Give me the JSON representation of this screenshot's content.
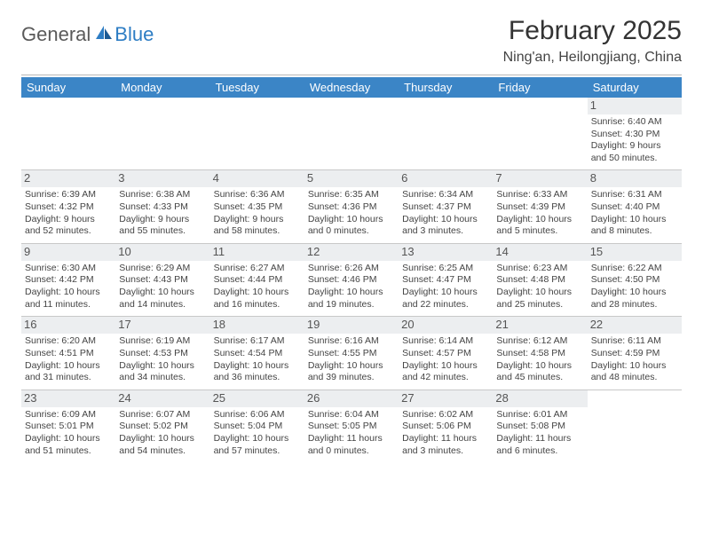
{
  "brand": {
    "part1": "General",
    "part2": "Blue"
  },
  "title": "February 2025",
  "location": "Ning'an, Heilongjiang, China",
  "colors": {
    "header_bg": "#3b85c6",
    "header_text": "#ffffff",
    "brand_gray": "#5a5a5a",
    "brand_blue": "#2d7dc4",
    "text": "#444444",
    "divider": "#c8c8c8",
    "daynum_bg": "#eceef0"
  },
  "weekdays": [
    "Sunday",
    "Monday",
    "Tuesday",
    "Wednesday",
    "Thursday",
    "Friday",
    "Saturday"
  ],
  "weeks": [
    [
      null,
      null,
      null,
      null,
      null,
      null,
      {
        "n": "1",
        "sr": "Sunrise: 6:40 AM",
        "ss": "Sunset: 4:30 PM",
        "d1": "Daylight: 9 hours",
        "d2": "and 50 minutes."
      }
    ],
    [
      {
        "n": "2",
        "sr": "Sunrise: 6:39 AM",
        "ss": "Sunset: 4:32 PM",
        "d1": "Daylight: 9 hours",
        "d2": "and 52 minutes."
      },
      {
        "n": "3",
        "sr": "Sunrise: 6:38 AM",
        "ss": "Sunset: 4:33 PM",
        "d1": "Daylight: 9 hours",
        "d2": "and 55 minutes."
      },
      {
        "n": "4",
        "sr": "Sunrise: 6:36 AM",
        "ss": "Sunset: 4:35 PM",
        "d1": "Daylight: 9 hours",
        "d2": "and 58 minutes."
      },
      {
        "n": "5",
        "sr": "Sunrise: 6:35 AM",
        "ss": "Sunset: 4:36 PM",
        "d1": "Daylight: 10 hours",
        "d2": "and 0 minutes."
      },
      {
        "n": "6",
        "sr": "Sunrise: 6:34 AM",
        "ss": "Sunset: 4:37 PM",
        "d1": "Daylight: 10 hours",
        "d2": "and 3 minutes."
      },
      {
        "n": "7",
        "sr": "Sunrise: 6:33 AM",
        "ss": "Sunset: 4:39 PM",
        "d1": "Daylight: 10 hours",
        "d2": "and 5 minutes."
      },
      {
        "n": "8",
        "sr": "Sunrise: 6:31 AM",
        "ss": "Sunset: 4:40 PM",
        "d1": "Daylight: 10 hours",
        "d2": "and 8 minutes."
      }
    ],
    [
      {
        "n": "9",
        "sr": "Sunrise: 6:30 AM",
        "ss": "Sunset: 4:42 PM",
        "d1": "Daylight: 10 hours",
        "d2": "and 11 minutes."
      },
      {
        "n": "10",
        "sr": "Sunrise: 6:29 AM",
        "ss": "Sunset: 4:43 PM",
        "d1": "Daylight: 10 hours",
        "d2": "and 14 minutes."
      },
      {
        "n": "11",
        "sr": "Sunrise: 6:27 AM",
        "ss": "Sunset: 4:44 PM",
        "d1": "Daylight: 10 hours",
        "d2": "and 16 minutes."
      },
      {
        "n": "12",
        "sr": "Sunrise: 6:26 AM",
        "ss": "Sunset: 4:46 PM",
        "d1": "Daylight: 10 hours",
        "d2": "and 19 minutes."
      },
      {
        "n": "13",
        "sr": "Sunrise: 6:25 AM",
        "ss": "Sunset: 4:47 PM",
        "d1": "Daylight: 10 hours",
        "d2": "and 22 minutes."
      },
      {
        "n": "14",
        "sr": "Sunrise: 6:23 AM",
        "ss": "Sunset: 4:48 PM",
        "d1": "Daylight: 10 hours",
        "d2": "and 25 minutes."
      },
      {
        "n": "15",
        "sr": "Sunrise: 6:22 AM",
        "ss": "Sunset: 4:50 PM",
        "d1": "Daylight: 10 hours",
        "d2": "and 28 minutes."
      }
    ],
    [
      {
        "n": "16",
        "sr": "Sunrise: 6:20 AM",
        "ss": "Sunset: 4:51 PM",
        "d1": "Daylight: 10 hours",
        "d2": "and 31 minutes."
      },
      {
        "n": "17",
        "sr": "Sunrise: 6:19 AM",
        "ss": "Sunset: 4:53 PM",
        "d1": "Daylight: 10 hours",
        "d2": "and 34 minutes."
      },
      {
        "n": "18",
        "sr": "Sunrise: 6:17 AM",
        "ss": "Sunset: 4:54 PM",
        "d1": "Daylight: 10 hours",
        "d2": "and 36 minutes."
      },
      {
        "n": "19",
        "sr": "Sunrise: 6:16 AM",
        "ss": "Sunset: 4:55 PM",
        "d1": "Daylight: 10 hours",
        "d2": "and 39 minutes."
      },
      {
        "n": "20",
        "sr": "Sunrise: 6:14 AM",
        "ss": "Sunset: 4:57 PM",
        "d1": "Daylight: 10 hours",
        "d2": "and 42 minutes."
      },
      {
        "n": "21",
        "sr": "Sunrise: 6:12 AM",
        "ss": "Sunset: 4:58 PM",
        "d1": "Daylight: 10 hours",
        "d2": "and 45 minutes."
      },
      {
        "n": "22",
        "sr": "Sunrise: 6:11 AM",
        "ss": "Sunset: 4:59 PM",
        "d1": "Daylight: 10 hours",
        "d2": "and 48 minutes."
      }
    ],
    [
      {
        "n": "23",
        "sr": "Sunrise: 6:09 AM",
        "ss": "Sunset: 5:01 PM",
        "d1": "Daylight: 10 hours",
        "d2": "and 51 minutes."
      },
      {
        "n": "24",
        "sr": "Sunrise: 6:07 AM",
        "ss": "Sunset: 5:02 PM",
        "d1": "Daylight: 10 hours",
        "d2": "and 54 minutes."
      },
      {
        "n": "25",
        "sr": "Sunrise: 6:06 AM",
        "ss": "Sunset: 5:04 PM",
        "d1": "Daylight: 10 hours",
        "d2": "and 57 minutes."
      },
      {
        "n": "26",
        "sr": "Sunrise: 6:04 AM",
        "ss": "Sunset: 5:05 PM",
        "d1": "Daylight: 11 hours",
        "d2": "and 0 minutes."
      },
      {
        "n": "27",
        "sr": "Sunrise: 6:02 AM",
        "ss": "Sunset: 5:06 PM",
        "d1": "Daylight: 11 hours",
        "d2": "and 3 minutes."
      },
      {
        "n": "28",
        "sr": "Sunrise: 6:01 AM",
        "ss": "Sunset: 5:08 PM",
        "d1": "Daylight: 11 hours",
        "d2": "and 6 minutes."
      },
      null
    ]
  ]
}
